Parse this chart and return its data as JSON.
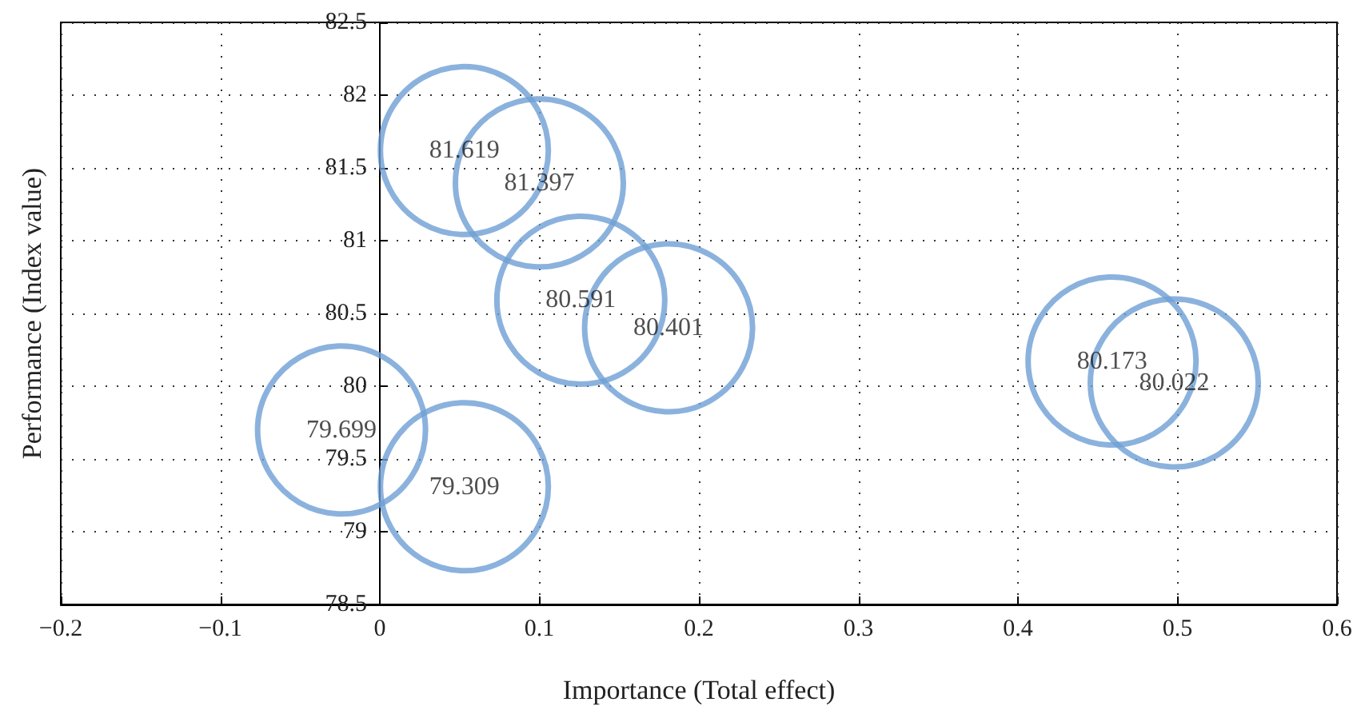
{
  "chart_data": {
    "type": "scatter",
    "xlabel": "Importance (Total effect)",
    "ylabel": "Performance (Index value)",
    "x": [
      0.053,
      0.1,
      0.126,
      0.181,
      0.459,
      0.498,
      -0.024,
      0.053
    ],
    "series": [
      {
        "color": "#6e9fd5",
        "values": [
          81.619,
          81.397,
          80.591,
          80.401,
          80.173,
          80.022,
          79.699,
          79.309
        ]
      }
    ],
    "xlim": [
      -0.2,
      0.6
    ],
    "xticks": [
      {
        "value": -0.2,
        "label": "−0.2"
      },
      {
        "value": -0.1,
        "label": "−0.1"
      },
      0,
      0.1,
      0.2,
      0.3,
      0.4,
      0.5,
      0.6
    ],
    "ylim": [
      78.5,
      82.5
    ],
    "yticks": [
      78.5,
      79,
      79.5,
      80,
      80.5,
      81,
      81.5,
      82,
      82.5
    ],
    "grid": true,
    "marker": "circle",
    "data_labels": true
  }
}
